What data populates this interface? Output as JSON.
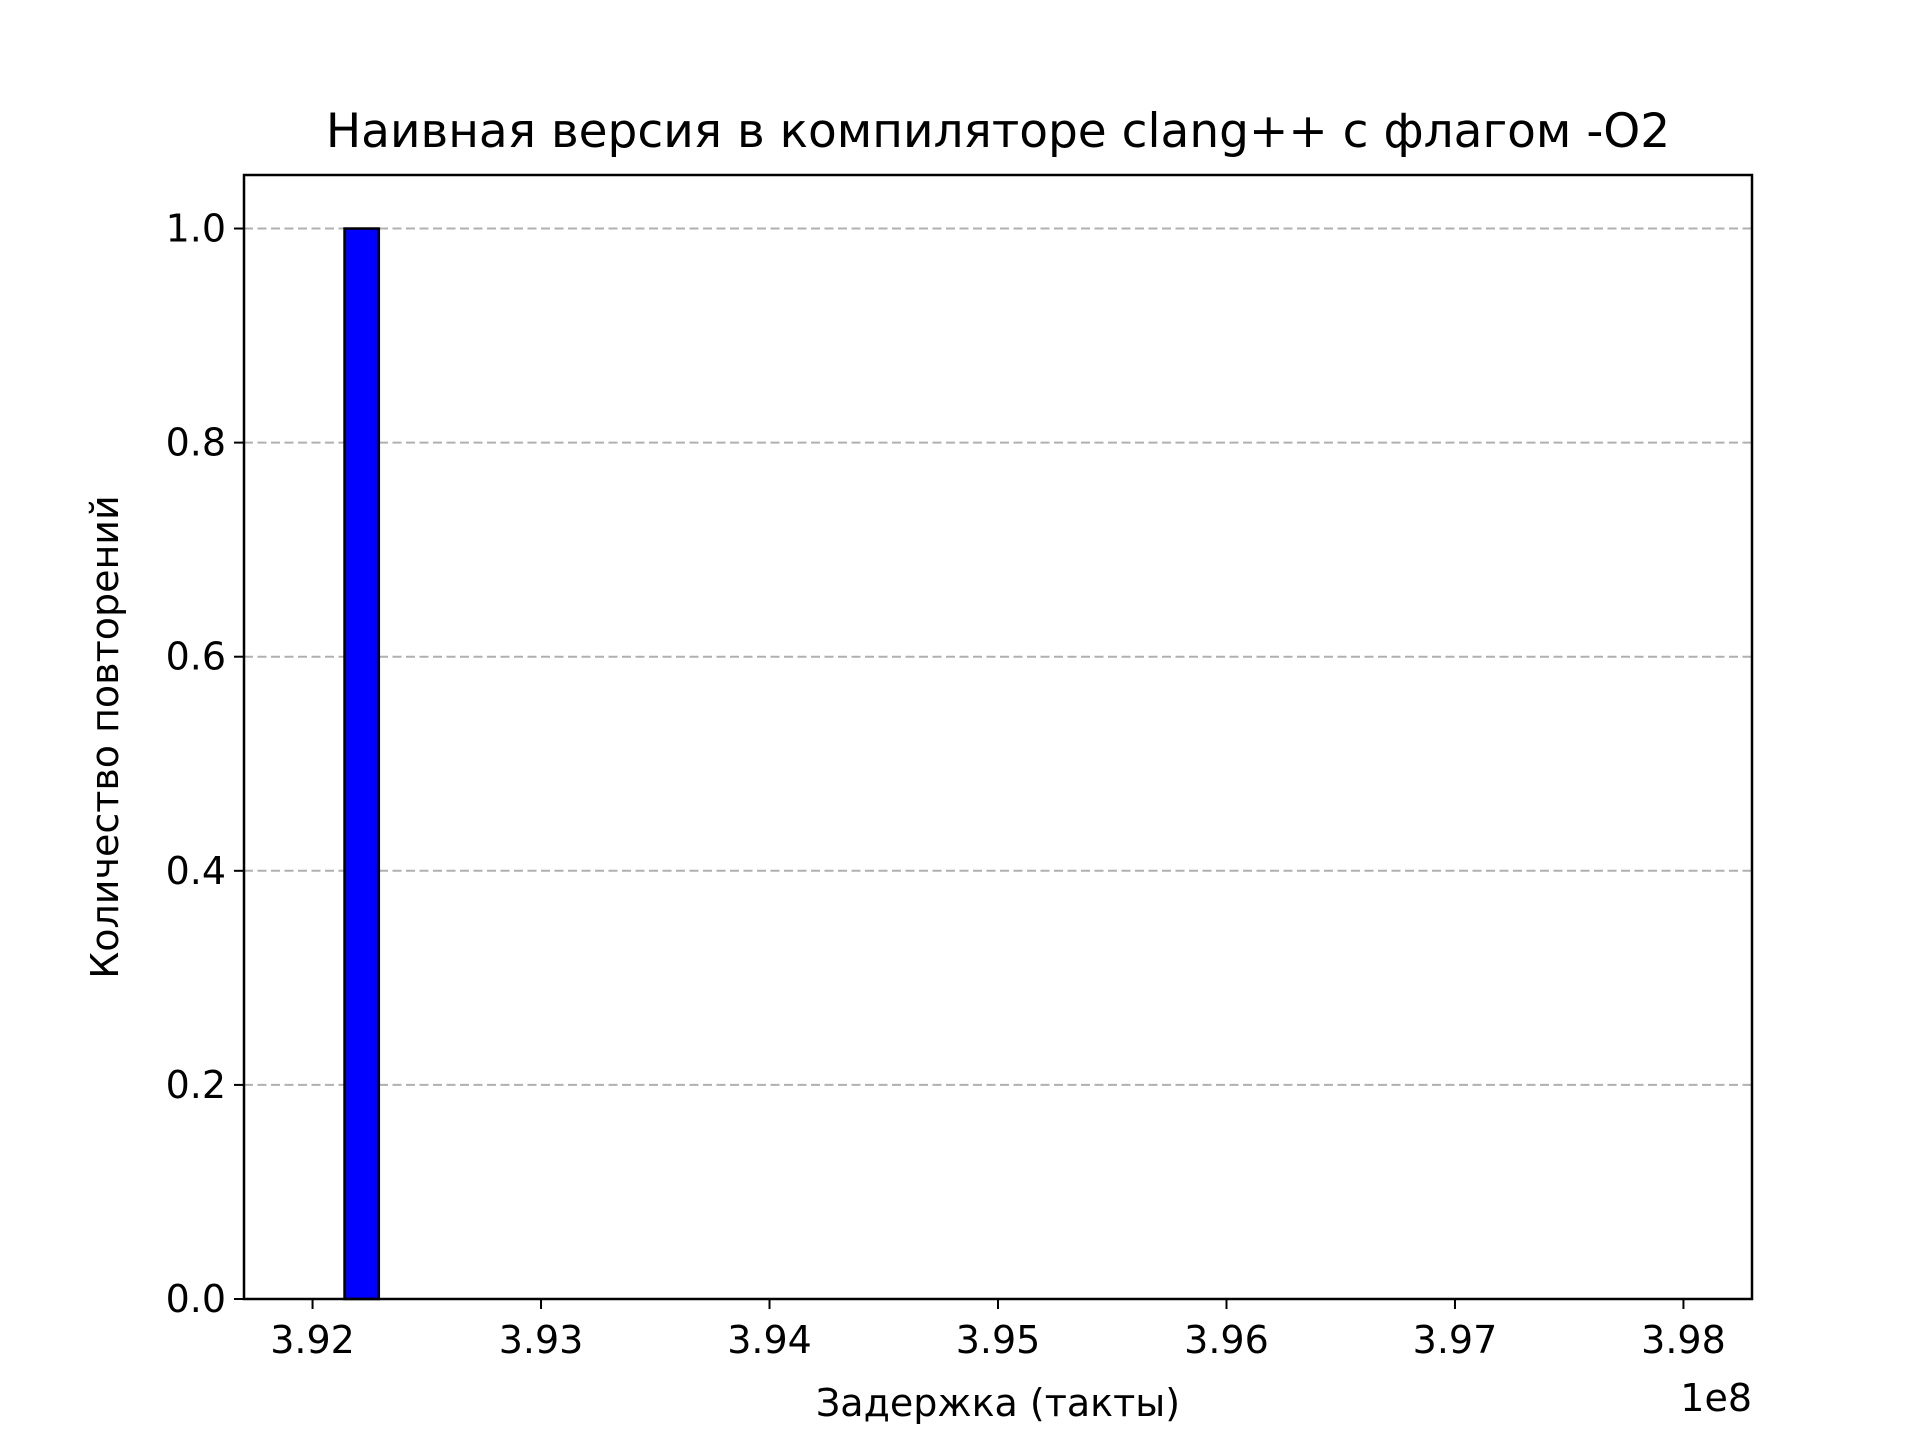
{
  "chart_data": {
    "type": "bar",
    "title": "Наивная версия в компиляторе clang++ с флагом -O2",
    "xlabel": "Задержка (такты)",
    "ylabel": "Количество повторений",
    "x_offset_label": "1e8",
    "xlim": [
      3.917,
      3.983
    ],
    "ylim": [
      0,
      1.05
    ],
    "x_ticks": [
      3.92,
      3.93,
      3.94,
      3.95,
      3.96,
      3.97,
      3.98
    ],
    "x_tick_labels": [
      "3.92",
      "3.93",
      "3.94",
      "3.95",
      "3.96",
      "3.97",
      "3.98"
    ],
    "y_ticks": [
      0.0,
      0.2,
      0.4,
      0.6,
      0.8,
      1.0
    ],
    "y_tick_labels": [
      "0.0",
      "0.2",
      "0.4",
      "0.6",
      "0.8",
      "1.0"
    ],
    "grid": {
      "axis": "y",
      "style": "dashed",
      "color": "#b0b0b0"
    },
    "bars": [
      {
        "x_start": 3.9214,
        "x_end": 3.9229,
        "value": 1.0
      }
    ],
    "bar_color": "#0000ff",
    "bar_edge_color": "#000000"
  }
}
